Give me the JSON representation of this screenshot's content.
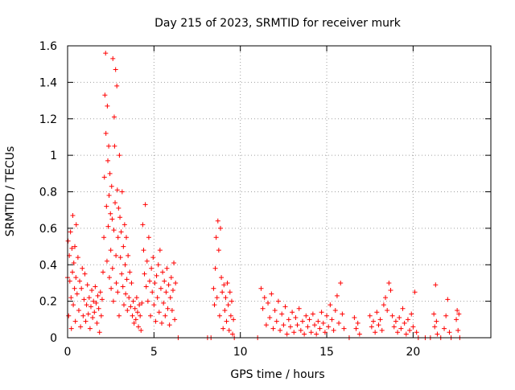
{
  "chart_data": {
    "type": "scatter",
    "title": "Day 215 of 2023, SRMTID for receiver murk",
    "xlabel": "GPS time / hours",
    "ylabel": "SRMTID / TECUs",
    "xlim": [
      0,
      24.5
    ],
    "ylim": [
      0,
      1.6
    ],
    "x_ticks": [
      0,
      5,
      10,
      15,
      20
    ],
    "x_tick_labels": [
      "0",
      "5",
      "10",
      "15",
      "20"
    ],
    "y_ticks": [
      0,
      0.2,
      0.4,
      0.6,
      0.8,
      1.0,
      1.2,
      1.4,
      1.6
    ],
    "y_tick_labels": [
      "0",
      "0.2",
      "0.4",
      "0.6",
      "0.8",
      "1",
      "1.2",
      "1.4",
      "1.6"
    ],
    "grid": true,
    "marker": "+",
    "marker_color": "#ff0000",
    "series": [
      {
        "name": "SRMTID",
        "points": [
          [
            0.0,
            0.33
          ],
          [
            0.03,
            0.53
          ],
          [
            0.06,
            0.12
          ],
          [
            0.1,
            0.45
          ],
          [
            0.13,
            0.31
          ],
          [
            0.17,
            0.58
          ],
          [
            0.2,
            0.22
          ],
          [
            0.22,
            0.05
          ],
          [
            0.25,
            0.49
          ],
          [
            0.28,
            0.36
          ],
          [
            0.3,
            0.67
          ],
          [
            0.33,
            0.18
          ],
          [
            0.36,
            0.41
          ],
          [
            0.4,
            0.27
          ],
          [
            0.42,
            0.5
          ],
          [
            0.45,
            0.09
          ],
          [
            0.48,
            0.33
          ],
          [
            0.5,
            0.62
          ],
          [
            0.55,
            0.24
          ],
          [
            0.6,
            0.44
          ],
          [
            0.65,
            0.15
          ],
          [
            0.7,
            0.31
          ],
          [
            0.75,
            0.06
          ],
          [
            0.8,
            0.27
          ],
          [
            0.85,
            0.38
          ],
          [
            0.9,
            0.12
          ],
          [
            0.95,
            0.21
          ],
          [
            1.0,
            0.35
          ],
          [
            1.05,
            0.09
          ],
          [
            1.1,
            0.18
          ],
          [
            1.15,
            0.29
          ],
          [
            1.2,
            0.13
          ],
          [
            1.25,
            0.22
          ],
          [
            1.3,
            0.05
          ],
          [
            1.35,
            0.17
          ],
          [
            1.4,
            0.26
          ],
          [
            1.45,
            0.11
          ],
          [
            1.5,
            0.2
          ],
          [
            1.55,
            0.14
          ],
          [
            1.6,
            0.28
          ],
          [
            1.65,
            0.19
          ],
          [
            1.7,
            0.08
          ],
          [
            1.75,
            0.23
          ],
          [
            1.8,
            0.16
          ],
          [
            1.85,
            0.03
          ],
          [
            1.9,
            0.25
          ],
          [
            1.95,
            0.12
          ],
          [
            2.0,
            0.21
          ],
          [
            2.05,
            0.36
          ],
          [
            2.1,
            0.55
          ],
          [
            2.13,
            0.88
          ],
          [
            2.16,
            1.33
          ],
          [
            2.2,
            1.56
          ],
          [
            2.22,
            1.12
          ],
          [
            2.25,
            0.72
          ],
          [
            2.28,
            0.42
          ],
          [
            2.3,
            1.27
          ],
          [
            2.33,
            0.97
          ],
          [
            2.35,
            0.61
          ],
          [
            2.38,
            1.05
          ],
          [
            2.4,
            0.78
          ],
          [
            2.42,
            0.33
          ],
          [
            2.45,
            0.9
          ],
          [
            2.48,
            0.68
          ],
          [
            2.5,
            0.48
          ],
          [
            2.52,
            0.27
          ],
          [
            2.55,
            0.83
          ],
          [
            2.58,
            0.65
          ],
          [
            2.6,
            0.38
          ],
          [
            2.62,
            1.53
          ],
          [
            2.65,
            0.2
          ],
          [
            2.68,
            0.59
          ],
          [
            2.7,
            1.21
          ],
          [
            2.72,
            1.05
          ],
          [
            2.75,
            0.74
          ],
          [
            2.78,
            1.47
          ],
          [
            2.8,
            0.45
          ],
          [
            2.82,
            0.3
          ],
          [
            2.85,
            1.38
          ],
          [
            2.88,
            0.81
          ],
          [
            2.9,
            0.25
          ],
          [
            2.92,
            0.55
          ],
          [
            2.95,
            0.71
          ],
          [
            2.98,
            0.12
          ],
          [
            3.0,
            1.0
          ],
          [
            3.03,
            0.66
          ],
          [
            3.06,
            0.44
          ],
          [
            3.1,
            0.58
          ],
          [
            3.13,
            0.35
          ],
          [
            3.16,
            0.8
          ],
          [
            3.2,
            0.28
          ],
          [
            3.23,
            0.5
          ],
          [
            3.26,
            0.18
          ],
          [
            3.3,
            0.62
          ],
          [
            3.33,
            0.4
          ],
          [
            3.36,
            0.24
          ],
          [
            3.4,
            0.55
          ],
          [
            3.43,
            0.32
          ],
          [
            3.46,
            0.15
          ],
          [
            3.5,
            0.45
          ],
          [
            3.55,
            0.22
          ],
          [
            3.6,
            0.36
          ],
          [
            3.65,
            0.17
          ],
          [
            3.7,
            0.3
          ],
          [
            3.75,
            0.12
          ],
          [
            3.8,
            0.2
          ],
          [
            3.85,
            0.08
          ],
          [
            3.9,
            0.16
          ],
          [
            3.95,
            0.1
          ],
          [
            4.0,
            0.22
          ],
          [
            4.05,
            0.14
          ],
          [
            4.1,
            0.06
          ],
          [
            4.15,
            0.18
          ],
          [
            4.2,
            0.12
          ],
          [
            4.25,
            0.04
          ],
          [
            4.3,
            0.19
          ],
          [
            4.35,
            0.62
          ],
          [
            4.4,
            0.48
          ],
          [
            4.45,
            0.35
          ],
          [
            4.5,
            0.73
          ],
          [
            4.55,
            0.28
          ],
          [
            4.6,
            0.42
          ],
          [
            4.65,
            0.2
          ],
          [
            4.7,
            0.55
          ],
          [
            4.75,
            0.31
          ],
          [
            4.8,
            0.12
          ],
          [
            4.85,
            0.38
          ],
          [
            4.9,
            0.25
          ],
          [
            4.95,
            0.44
          ],
          [
            5.0,
            0.18
          ],
          [
            5.05,
            0.3
          ],
          [
            5.1,
            0.09
          ],
          [
            5.15,
            0.34
          ],
          [
            5.2,
            0.22
          ],
          [
            5.25,
            0.4
          ],
          [
            5.3,
            0.14
          ],
          [
            5.35,
            0.48
          ],
          [
            5.4,
            0.27
          ],
          [
            5.45,
            0.08
          ],
          [
            5.5,
            0.36
          ],
          [
            5.55,
            0.19
          ],
          [
            5.6,
            0.31
          ],
          [
            5.65,
            0.12
          ],
          [
            5.7,
            0.25
          ],
          [
            5.75,
            0.38
          ],
          [
            5.8,
            0.16
          ],
          [
            5.85,
            0.29
          ],
          [
            5.9,
            0.07
          ],
          [
            5.95,
            0.22
          ],
          [
            6.0,
            0.33
          ],
          [
            6.05,
            0.15
          ],
          [
            6.1,
            0.26
          ],
          [
            6.15,
            0.41
          ],
          [
            6.2,
            0.1
          ],
          [
            6.25,
            0.3
          ],
          [
            6.4,
            0.0
          ],
          [
            8.1,
            0.0
          ],
          [
            8.3,
            0.0
          ],
          [
            8.45,
            0.27
          ],
          [
            8.5,
            0.18
          ],
          [
            8.55,
            0.38
          ],
          [
            8.6,
            0.55
          ],
          [
            8.65,
            0.22
          ],
          [
            8.7,
            0.64
          ],
          [
            8.75,
            0.48
          ],
          [
            8.8,
            0.12
          ],
          [
            8.85,
            0.6
          ],
          [
            8.9,
            0.33
          ],
          [
            8.95,
            0.25
          ],
          [
            9.0,
            0.05
          ],
          [
            9.05,
            0.29
          ],
          [
            9.1,
            0.15
          ],
          [
            9.15,
            0.22
          ],
          [
            9.2,
            0.09
          ],
          [
            9.25,
            0.3
          ],
          [
            9.3,
            0.18
          ],
          [
            9.35,
            0.04
          ],
          [
            9.4,
            0.25
          ],
          [
            9.45,
            0.12
          ],
          [
            9.5,
            0.2
          ],
          [
            9.55,
            0.02
          ],
          [
            9.6,
            0.1
          ],
          [
            9.65,
            0.0
          ],
          [
            11.0,
            0.0
          ],
          [
            11.2,
            0.27
          ],
          [
            11.3,
            0.16
          ],
          [
            11.4,
            0.22
          ],
          [
            11.5,
            0.07
          ],
          [
            11.6,
            0.19
          ],
          [
            11.7,
            0.11
          ],
          [
            11.8,
            0.24
          ],
          [
            11.9,
            0.05
          ],
          [
            12.0,
            0.15
          ],
          [
            12.1,
            0.09
          ],
          [
            12.2,
            0.2
          ],
          [
            12.3,
            0.04
          ],
          [
            12.4,
            0.13
          ],
          [
            12.5,
            0.07
          ],
          [
            12.6,
            0.17
          ],
          [
            12.7,
            0.02
          ],
          [
            12.8,
            0.1
          ],
          [
            12.9,
            0.06
          ],
          [
            13.0,
            0.14
          ],
          [
            13.1,
            0.03
          ],
          [
            13.2,
            0.11
          ],
          [
            13.3,
            0.07
          ],
          [
            13.4,
            0.16
          ],
          [
            13.5,
            0.04
          ],
          [
            13.6,
            0.09
          ],
          [
            13.7,
            0.02
          ],
          [
            13.8,
            0.12
          ],
          [
            13.9,
            0.06
          ],
          [
            14.0,
            0.1
          ],
          [
            14.1,
            0.03
          ],
          [
            14.2,
            0.13
          ],
          [
            14.3,
            0.07
          ],
          [
            14.4,
            0.02
          ],
          [
            14.5,
            0.09
          ],
          [
            14.6,
            0.05
          ],
          [
            14.7,
            0.14
          ],
          [
            14.8,
            0.08
          ],
          [
            14.9,
            0.03
          ],
          [
            15.0,
            0.12
          ],
          [
            15.1,
            0.06
          ],
          [
            15.2,
            0.18
          ],
          [
            15.3,
            0.1
          ],
          [
            15.4,
            0.04
          ],
          [
            15.5,
            0.15
          ],
          [
            15.6,
            0.23
          ],
          [
            15.7,
            0.08
          ],
          [
            15.8,
            0.3
          ],
          [
            15.9,
            0.13
          ],
          [
            16.0,
            0.05
          ],
          [
            16.3,
            0.0
          ],
          [
            16.6,
            0.11
          ],
          [
            16.7,
            0.05
          ],
          [
            16.8,
            0.08
          ],
          [
            16.9,
            0.02
          ],
          [
            17.5,
            0.12
          ],
          [
            17.6,
            0.06
          ],
          [
            17.7,
            0.09
          ],
          [
            17.8,
            0.03
          ],
          [
            17.9,
            0.14
          ],
          [
            18.0,
            0.07
          ],
          [
            18.1,
            0.1
          ],
          [
            18.2,
            0.04
          ],
          [
            18.3,
            0.18
          ],
          [
            18.4,
            0.22
          ],
          [
            18.5,
            0.15
          ],
          [
            18.6,
            0.3
          ],
          [
            18.7,
            0.26
          ],
          [
            18.8,
            0.12
          ],
          [
            18.9,
            0.06
          ],
          [
            19.0,
            0.09
          ],
          [
            19.1,
            0.03
          ],
          [
            19.2,
            0.11
          ],
          [
            19.3,
            0.05
          ],
          [
            19.4,
            0.16
          ],
          [
            19.5,
            0.08
          ],
          [
            19.6,
            0.02
          ],
          [
            19.7,
            0.1
          ],
          [
            19.8,
            0.04
          ],
          [
            19.9,
            0.13
          ],
          [
            20.0,
            0.06
          ],
          [
            20.1,
            0.25
          ],
          [
            20.2,
            0.03
          ],
          [
            20.3,
            0.0
          ],
          [
            20.7,
            0.0
          ],
          [
            21.0,
            0.0
          ],
          [
            21.2,
            0.13
          ],
          [
            21.25,
            0.06
          ],
          [
            21.3,
            0.29
          ],
          [
            21.35,
            0.09
          ],
          [
            21.4,
            0.02
          ],
          [
            21.6,
            0.0
          ],
          [
            21.8,
            0.05
          ],
          [
            21.9,
            0.12
          ],
          [
            22.0,
            0.21
          ],
          [
            22.1,
            0.03
          ],
          [
            22.2,
            0.0
          ],
          [
            22.5,
            0.1
          ],
          [
            22.55,
            0.15
          ],
          [
            22.6,
            0.04
          ],
          [
            22.65,
            0.13
          ],
          [
            22.7,
            0.0
          ]
        ]
      }
    ]
  }
}
